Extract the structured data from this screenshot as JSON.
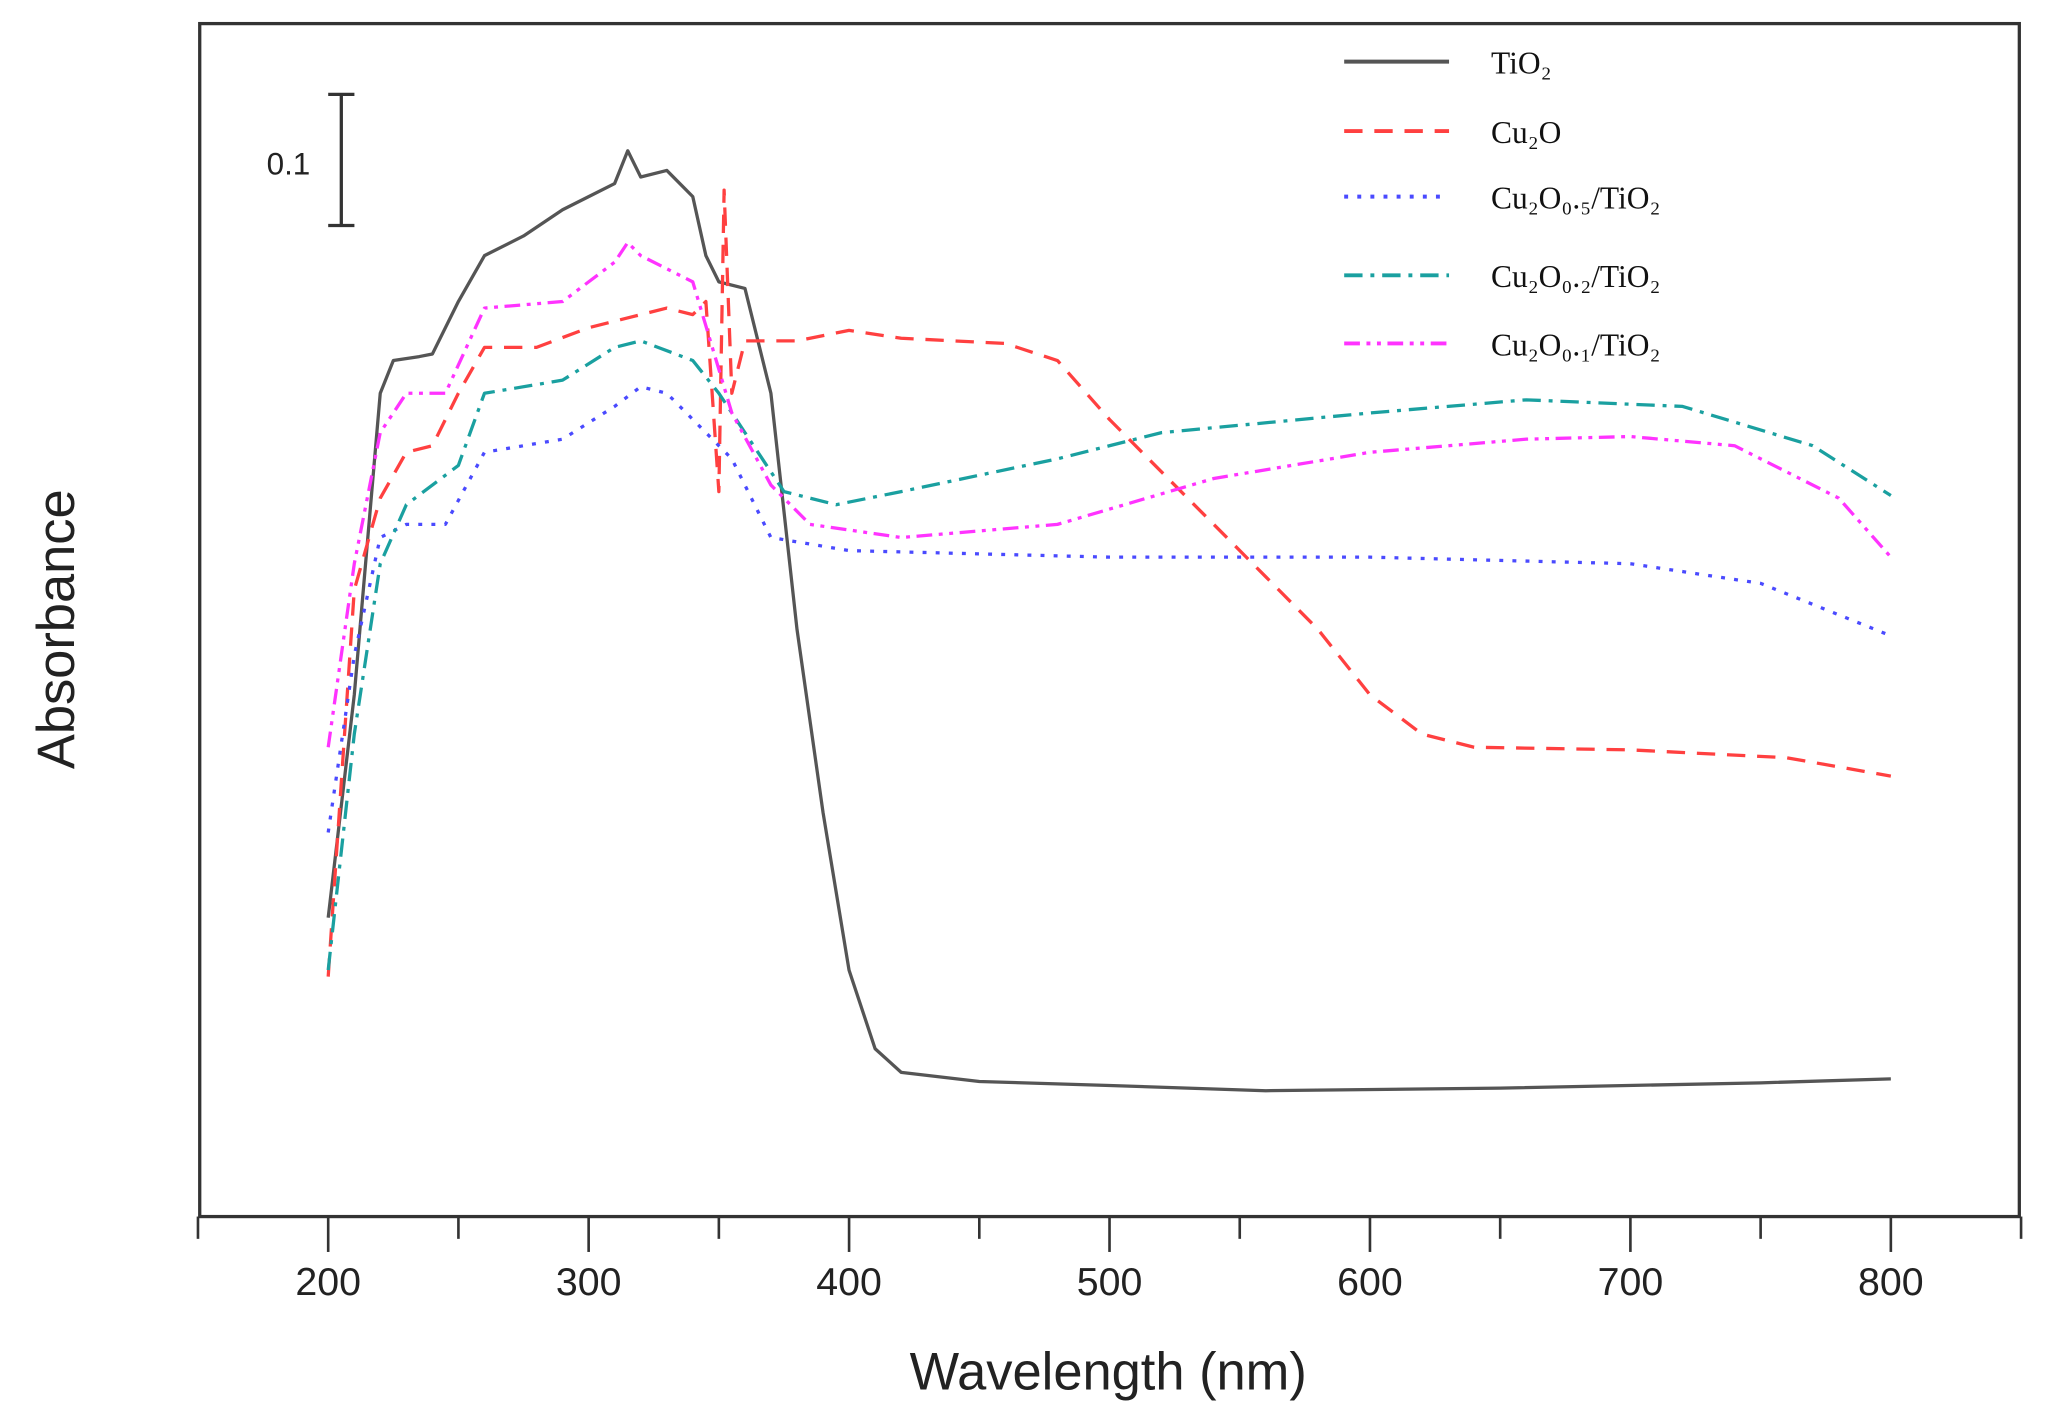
{
  "chart_data": {
    "type": "line",
    "title": "",
    "xlabel": "Wavelength (nm)",
    "ylabel": "Absorbance",
    "xlim": [
      151,
      850
    ],
    "ylim": [
      0,
      0.91
    ],
    "x_ticks": [
      200,
      300,
      400,
      500,
      600,
      700,
      800
    ],
    "x_tick_labels": [
      "200",
      "300",
      "400",
      "500",
      "600",
      "700",
      "800"
    ],
    "x_minor_ticks": [
      150,
      250,
      350,
      450,
      550,
      650,
      750,
      850
    ],
    "grid": false,
    "legend_position": "top-right",
    "scale_bar": {
      "label": "0.1",
      "value": 0.1,
      "y_from": 0.756,
      "y_to": 0.856
    },
    "series": [
      {
        "name": "TiO₂",
        "color": "#555555",
        "dash": "solid",
        "x": [
          200,
          210,
          220,
          225,
          235,
          240,
          250,
          260,
          275,
          290,
          300,
          310,
          315,
          320,
          330,
          340,
          345,
          350,
          360,
          370,
          380,
          390,
          400,
          410,
          420,
          450,
          500,
          560,
          650,
          750,
          800
        ],
        "y": [
          0.228,
          0.398,
          0.628,
          0.653,
          0.656,
          0.658,
          0.698,
          0.733,
          0.748,
          0.768,
          0.778,
          0.788,
          0.813,
          0.793,
          0.798,
          0.778,
          0.733,
          0.713,
          0.708,
          0.628,
          0.448,
          0.308,
          0.188,
          0.128,
          0.11,
          0.103,
          0.1,
          0.096,
          0.098,
          0.102,
          0.105
        ]
      },
      {
        "name": "Cu₂O",
        "color": "#ff4040",
        "dash": "dashed",
        "x": [
          200,
          210,
          220,
          230,
          240,
          250,
          260,
          280,
          300,
          320,
          330,
          340,
          345,
          350,
          352,
          355,
          360,
          380,
          400,
          420,
          460,
          480,
          500,
          520,
          540,
          560,
          580,
          600,
          620,
          640,
          700,
          760,
          800
        ],
        "y": [
          0.183,
          0.478,
          0.548,
          0.583,
          0.588,
          0.628,
          0.663,
          0.663,
          0.678,
          0.688,
          0.693,
          0.688,
          0.698,
          0.553,
          0.783,
          0.628,
          0.668,
          0.668,
          0.676,
          0.67,
          0.666,
          0.653,
          0.608,
          0.568,
          0.528,
          0.488,
          0.448,
          0.398,
          0.368,
          0.358,
          0.356,
          0.35,
          0.336
        ]
      },
      {
        "name": "Cu₂O₀.₅/TiO₂",
        "color": "#4a4aff",
        "dash": "dotted",
        "x": [
          200,
          210,
          220,
          230,
          245,
          260,
          290,
          310,
          320,
          330,
          345,
          355,
          370,
          400,
          500,
          600,
          700,
          750,
          800
        ],
        "y": [
          0.293,
          0.428,
          0.518,
          0.528,
          0.528,
          0.583,
          0.593,
          0.618,
          0.633,
          0.628,
          0.598,
          0.578,
          0.518,
          0.508,
          0.503,
          0.503,
          0.498,
          0.483,
          0.443
        ]
      },
      {
        "name": "Cu₂O₀.₂/TiO₂",
        "color": "#1aa0a0",
        "dash": "dashdot",
        "x": [
          200,
          210,
          220,
          230,
          250,
          260,
          290,
          310,
          320,
          340,
          350,
          360,
          375,
          395,
          420,
          480,
          520,
          600,
          660,
          720,
          770,
          800
        ],
        "y": [
          0.188,
          0.368,
          0.498,
          0.543,
          0.573,
          0.628,
          0.638,
          0.663,
          0.668,
          0.653,
          0.628,
          0.598,
          0.553,
          0.543,
          0.553,
          0.578,
          0.598,
          0.613,
          0.623,
          0.618,
          0.588,
          0.55
        ]
      },
      {
        "name": "Cu₂O₀.₁/TiO₂",
        "color": "#ff33ff",
        "dash": "dashdotdot",
        "x": [
          200,
          210,
          220,
          230,
          245,
          260,
          290,
          310,
          315,
          320,
          340,
          355,
          370,
          385,
          420,
          480,
          540,
          600,
          660,
          700,
          740,
          780,
          800
        ],
        "y": [
          0.358,
          0.498,
          0.598,
          0.628,
          0.628,
          0.693,
          0.698,
          0.728,
          0.743,
          0.733,
          0.713,
          0.613,
          0.558,
          0.528,
          0.518,
          0.528,
          0.563,
          0.583,
          0.593,
          0.595,
          0.588,
          0.548,
          0.503
        ]
      }
    ]
  }
}
